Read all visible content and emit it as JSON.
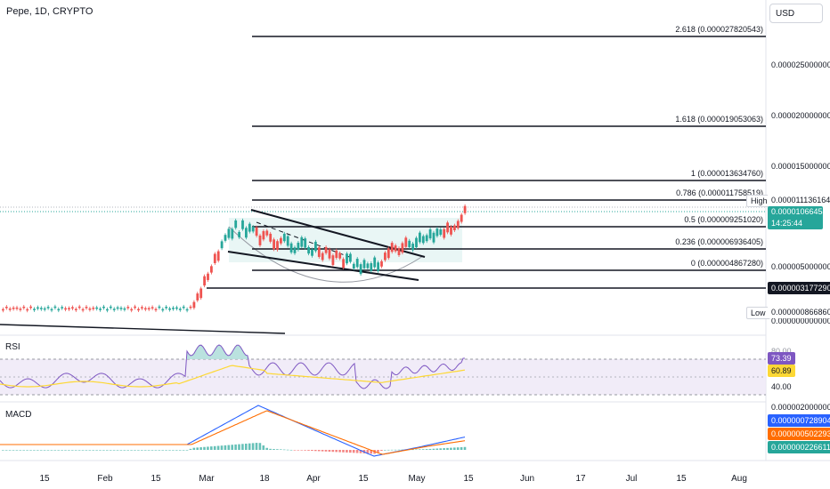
{
  "header": {
    "symbol": "Pepe, 1D, CRYPTO",
    "currency_button": "USD"
  },
  "price_axis": {
    "ticks": [
      "0.000025000000",
      "0.000020000000",
      "0.000015000000",
      "0.000005000000",
      "0.000000000000"
    ],
    "high_label": "High",
    "high_value": "0.000011136164",
    "last_price": "0.000010664543",
    "countdown": "14:25:44",
    "marked_level": "0.000003177290",
    "low_label": "Low",
    "low_value": "0.000000866860"
  },
  "fib_levels": [
    {
      "label": "2.618 (0.000027820543)"
    },
    {
      "label": "1.618 (0.000019053063)"
    },
    {
      "label": "1 (0.000013634760)"
    },
    {
      "label": "0.786 (0.000011758519)"
    },
    {
      "label": "0.5 (0.000009251020)"
    },
    {
      "label": "0.236 (0.000006936405)"
    },
    {
      "label": "0 (0.000004867280)"
    }
  ],
  "time_axis": [
    "15",
    "Feb",
    "15",
    "Mar",
    "18",
    "Apr",
    "15",
    "May",
    "15",
    "Jun",
    "17",
    "Jul",
    "15",
    "Aug"
  ],
  "rsi": {
    "label": "RSI",
    "axis_top": "80.00",
    "axis_bottom": "40.00",
    "value": "73.39",
    "ma_value": "60.89"
  },
  "macd": {
    "label": "MACD",
    "axis_top": "0.000002000000",
    "macd_value": "0.000000728904",
    "signal_value": "0.000000502293",
    "hist_value": "0.000000226611"
  },
  "colors": {
    "up": "#26a69a",
    "down": "#ef5350",
    "rsi_line": "#7e57c2",
    "rsi_ma": "#fdd835",
    "macd_line": "#2962ff",
    "signal_line": "#ff6d00",
    "cup_fill": "#e0f2f1"
  }
}
